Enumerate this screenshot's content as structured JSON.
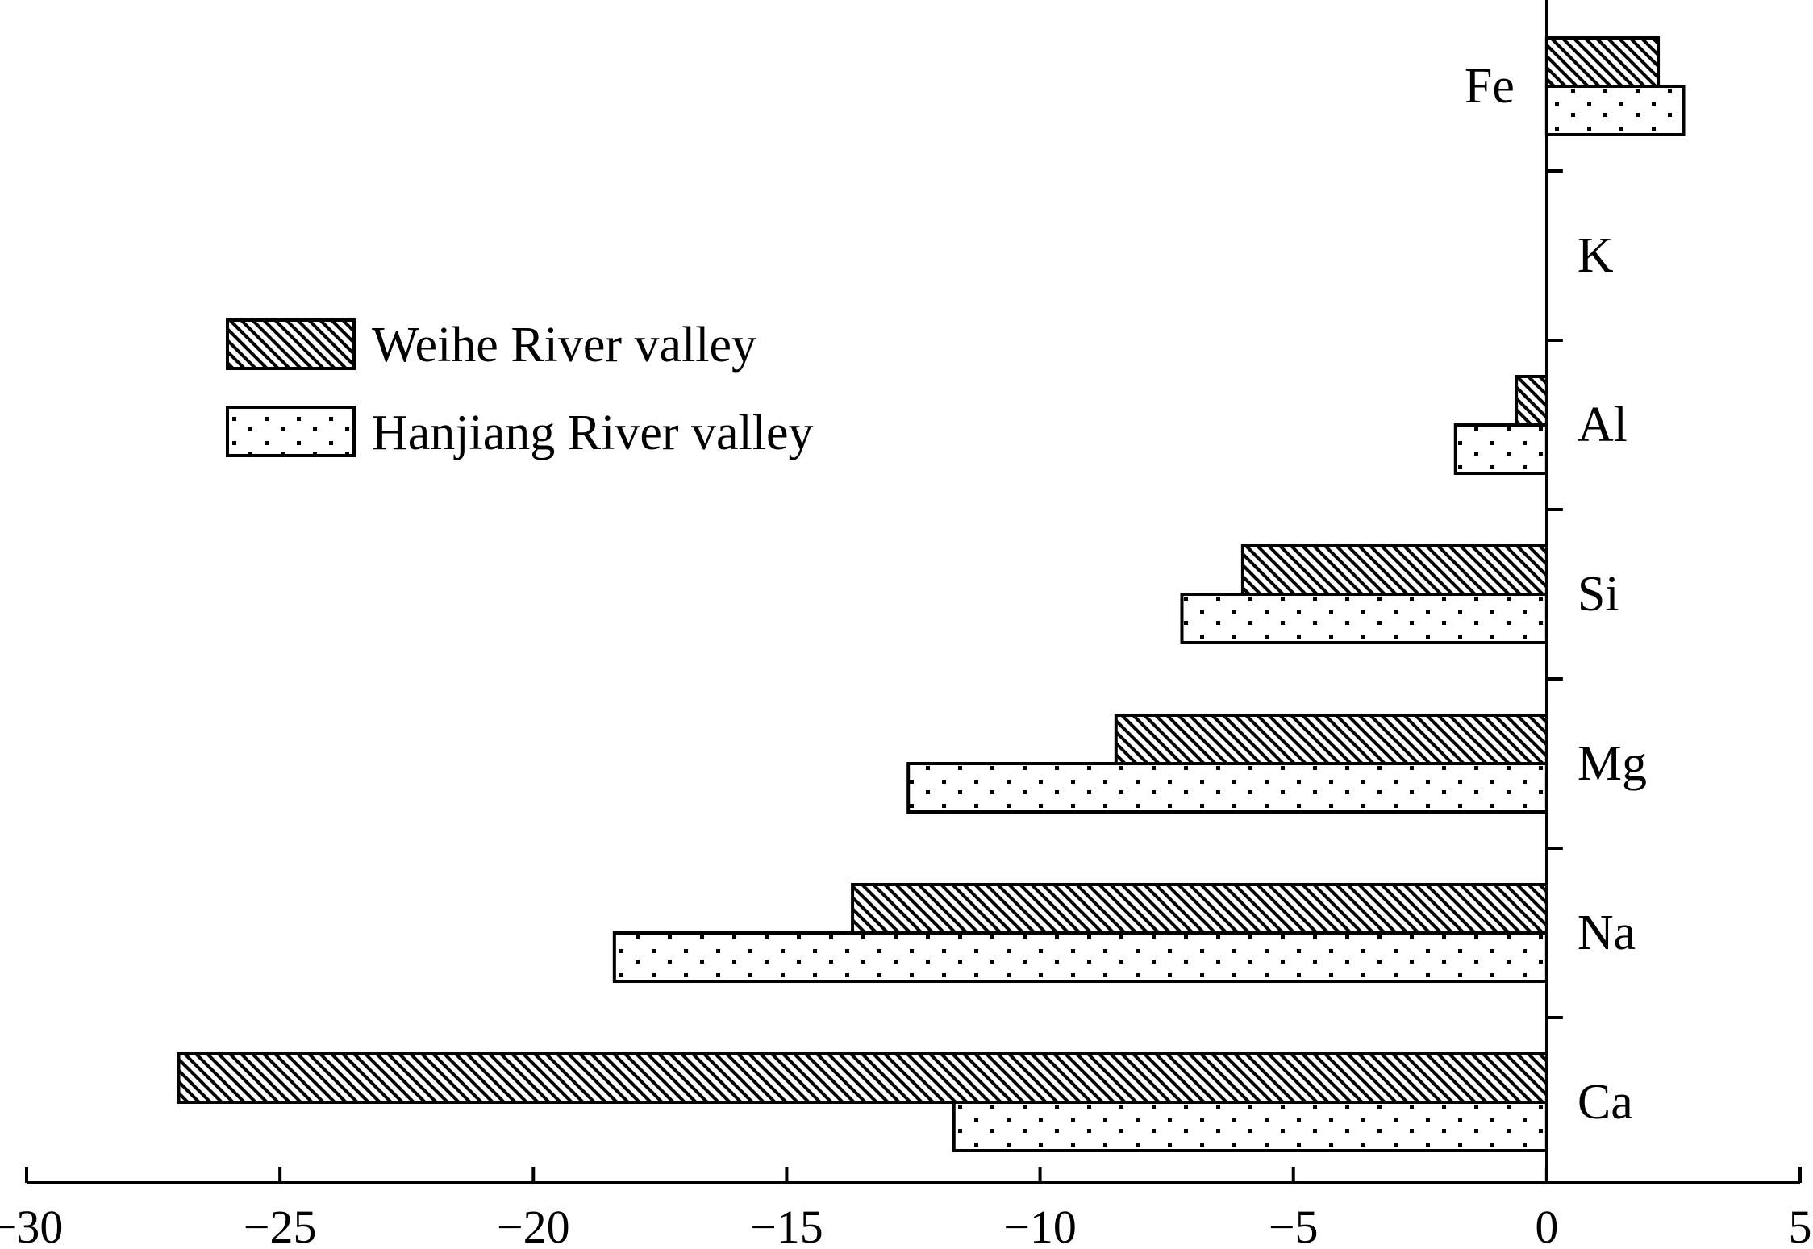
{
  "chart_data": {
    "type": "bar",
    "orientation": "horizontal",
    "categories": [
      "Fe",
      "K",
      "Al",
      "Si",
      "Mg",
      "Na",
      "Ca"
    ],
    "series": [
      {
        "name": "Weihe River valley",
        "pattern": "diagonal-hatch",
        "values": [
          2.2,
          0,
          -0.6,
          -6.0,
          -8.5,
          -13.7,
          -27.0
        ]
      },
      {
        "name": "Hanjiang River valley",
        "pattern": "dots",
        "values": [
          2.7,
          0,
          -1.8,
          -7.2,
          -12.6,
          -18.4,
          -11.7
        ]
      }
    ],
    "xlim": [
      -30,
      5
    ],
    "xticks": [
      -30,
      -25,
      -20,
      -15,
      -10,
      -5,
      0,
      5
    ],
    "xtick_labels": [
      "−30",
      "−25",
      "−20",
      "−15",
      "−10",
      "−5",
      "0",
      "5"
    ],
    "title": "",
    "xlabel": "",
    "ylabel": "",
    "legend_position": "upper-left",
    "grid": false
  }
}
